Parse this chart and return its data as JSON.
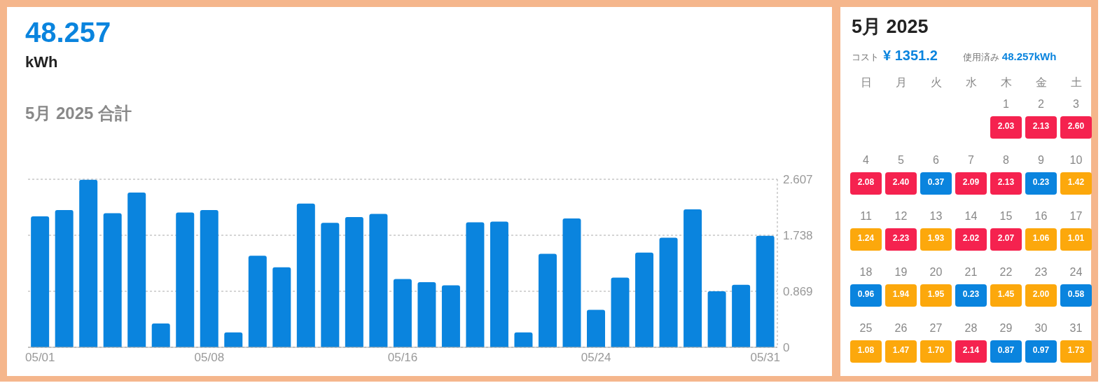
{
  "chart_data": [
    {
      "type": "bar",
      "title": "48.257",
      "subtitle": "kWh",
      "annotations": [
        "5月 2025 合計"
      ],
      "categories": [
        "05/01",
        null,
        null,
        null,
        null,
        null,
        null,
        "05/08",
        null,
        null,
        null,
        null,
        null,
        null,
        null,
        "05/16",
        null,
        null,
        null,
        null,
        null,
        null,
        null,
        "05/24",
        null,
        null,
        null,
        null,
        null,
        null,
        "05/31"
      ],
      "values": [
        2.03,
        2.13,
        2.6,
        2.08,
        2.4,
        0.37,
        2.09,
        2.13,
        0.23,
        1.42,
        1.24,
        2.23,
        1.93,
        2.02,
        2.07,
        1.06,
        1.01,
        0.96,
        1.94,
        1.95,
        0.23,
        1.45,
        2.0,
        0.58,
        1.08,
        1.47,
        1.7,
        2.14,
        0.87,
        0.97,
        1.73
      ],
      "color": "#0a84de",
      "ylim": [
        0,
        2.607
      ],
      "yticks": [
        0,
        0.869,
        1.738,
        2.607
      ],
      "grid": "y",
      "legend": false
    },
    {
      "type": "heatmap",
      "title": "5月 2025",
      "y_categories": [
        null,
        null,
        null,
        null,
        null
      ],
      "annotations": [
        "コスト",
        "¥ 1351.2",
        "使用済み",
        "48.257kWh",
        "1",
        "2",
        "3",
        "4",
        "5",
        "6",
        "7",
        "8",
        "9",
        "10",
        "11",
        "12",
        "13",
        "14",
        "15",
        "16",
        "17",
        "18",
        "19",
        "20",
        "21",
        "22",
        "23",
        "24",
        "25",
        "26",
        "27",
        "28",
        "29",
        "30",
        "31"
      ],
      "categories": [
        "日",
        "月",
        "火",
        "水",
        "木",
        "金",
        "土"
      ],
      "cells": [
        [
          null,
          null,
          null,
          null,
          2.03,
          2.13,
          2.6
        ],
        [
          2.08,
          2.4,
          0.37,
          2.09,
          2.13,
          0.23,
          1.42
        ],
        [
          1.24,
          2.23,
          1.93,
          2.02,
          2.07,
          1.06,
          1.01
        ],
        [
          0.96,
          1.94,
          1.95,
          0.23,
          1.45,
          2.0,
          0.58
        ],
        [
          1.08,
          1.47,
          1.7,
          2.14,
          0.87,
          0.97,
          1.73
        ]
      ],
      "cell_labels": [
        [
          null,
          null,
          null,
          null,
          "2.03",
          "2.13",
          "2.60"
        ],
        [
          "2.08",
          "2.40",
          "0.37",
          "2.09",
          "2.13",
          "0.23",
          "1.42"
        ],
        [
          "1.24",
          "2.23",
          "1.93",
          "2.02",
          "2.07",
          "1.06",
          "1.01"
        ],
        [
          "0.96",
          "1.94",
          "1.95",
          "0.23",
          "1.45",
          "2.00",
          "0.58"
        ],
        [
          "1.08",
          "1.47",
          "1.70",
          "2.14",
          "0.87",
          "0.97",
          "1.73"
        ]
      ]
    }
  ]
}
